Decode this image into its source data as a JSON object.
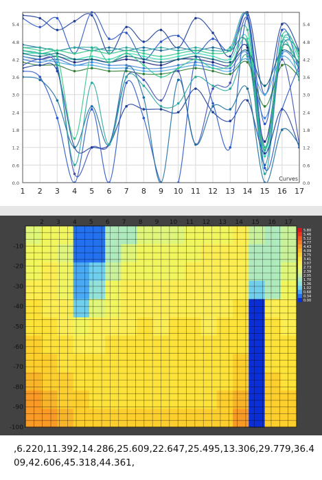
{
  "line_chart": {
    "type": "line",
    "x_ticks": [
      "1",
      "2",
      "3",
      "4",
      "5",
      "6",
      "7",
      "8",
      "9",
      "10",
      "11",
      "12",
      "13",
      "14",
      "15",
      "16",
      "17"
    ],
    "y_ticks": [
      "0.0",
      "0.6",
      "1.2",
      "1.8",
      "2.4",
      "3.0",
      "3.6",
      "4.2",
      "4.8",
      "5.4"
    ],
    "xlim": [
      1,
      17
    ],
    "ylim": [
      0,
      5.8
    ],
    "legend_label": "Curves",
    "grid": true,
    "series_colors": [
      "#1f3f9a",
      "#2a56c6",
      "#1d6f9f",
      "#2ca8a0",
      "#34c58a",
      "#35d4b0",
      "#1a237e",
      "#3b7fd6",
      "#0b5e7a",
      "#4aa3df",
      "#2e7d32",
      "#3f51b5"
    ],
    "series": [
      {
        "values": [
          5.7,
          5.6,
          5.2,
          5.5,
          5.7,
          4.4,
          5.3,
          4.8,
          5.2,
          4.6,
          5.6,
          5.1,
          4.3,
          5.8,
          3.0,
          5.4,
          4.5
        ]
      },
      {
        "values": [
          5.6,
          5.3,
          5.6,
          4.4,
          5.8,
          4.9,
          5.1,
          4.2,
          4.8,
          5.0,
          4.4,
          4.9,
          4.5,
          5.7,
          2.0,
          5.2,
          3.8
        ]
      },
      {
        "values": [
          4.7,
          4.6,
          4.5,
          4.6,
          4.5,
          4.6,
          4.5,
          4.6,
          4.5,
          4.6,
          4.5,
          4.6,
          4.5,
          4.7,
          0.6,
          4.6,
          4.5
        ]
      },
      {
        "values": [
          4.6,
          4.6,
          4.5,
          4.6,
          4.6,
          4.5,
          4.6,
          4.5,
          4.6,
          4.5,
          4.6,
          4.5,
          4.6,
          5.6,
          0.3,
          4.8,
          4.4
        ]
      },
      {
        "values": [
          4.5,
          4.4,
          4.5,
          4.4,
          4.5,
          4.4,
          4.5,
          4.4,
          4.3,
          4.4,
          4.5,
          4.4,
          4.5,
          5.2,
          1.1,
          5.0,
          4.3
        ]
      },
      {
        "values": [
          4.4,
          4.4,
          4.3,
          4.2,
          4.3,
          4.2,
          4.4,
          4.3,
          4.2,
          4.3,
          4.4,
          4.3,
          4.2,
          4.9,
          0.9,
          4.8,
          4.2
        ]
      },
      {
        "values": [
          4.3,
          4.2,
          4.3,
          4.1,
          4.2,
          4.1,
          4.2,
          4.1,
          4.0,
          4.2,
          4.2,
          4.1,
          4.0,
          4.6,
          1.4,
          4.6,
          4.0
        ]
      },
      {
        "values": [
          4.2,
          4.1,
          4.2,
          4.0,
          4.1,
          4.0,
          4.0,
          3.9,
          3.9,
          4.0,
          4.1,
          4.0,
          3.9,
          4.4,
          2.2,
          4.4,
          3.9
        ]
      },
      {
        "values": [
          4.4,
          4.3,
          4.4,
          4.2,
          4.2,
          4.1,
          4.3,
          4.2,
          4.1,
          4.2,
          4.3,
          4.2,
          4.1,
          4.5,
          3.3,
          4.5,
          4.1
        ]
      },
      {
        "values": [
          4.3,
          4.2,
          4.1,
          4.0,
          4.0,
          3.9,
          3.9,
          3.8,
          3.8,
          3.9,
          4.0,
          3.9,
          3.8,
          4.2,
          3.0,
          4.3,
          3.7
        ]
      },
      {
        "values": [
          4.1,
          4.0,
          4.0,
          3.8,
          3.9,
          3.8,
          3.8,
          3.7,
          3.7,
          3.8,
          3.9,
          3.8,
          3.7,
          4.1,
          2.6,
          4.0,
          3.6
        ]
      },
      {
        "values": [
          4.0,
          4.2,
          3.9,
          0.3,
          1.2,
          1.3,
          3.6,
          3.5,
          2.8,
          3.8,
          1.3,
          3.2,
          3.4,
          5.6,
          1.2,
          4.2,
          1.3
        ]
      },
      {
        "values": [
          3.9,
          4.0,
          3.8,
          1.2,
          1.2,
          1.3,
          2.6,
          2.5,
          2.5,
          2.4,
          3.2,
          2.4,
          2.1,
          2.8,
          1.0,
          2.5,
          1.2
        ]
      },
      {
        "values": [
          3.8,
          3.6,
          2.2,
          0.0,
          2.5,
          0.0,
          3.4,
          2.2,
          0.0,
          0.0,
          4.2,
          2.7,
          1.2,
          5.6,
          0.5,
          2.5,
          4.0
        ]
      },
      {
        "values": [
          3.6,
          3.5,
          2.8,
          1.2,
          2.6,
          1.3,
          3.9,
          2.9,
          0.0,
          3.5,
          1.3,
          2.6,
          2.5,
          3.2,
          0.0,
          1.8,
          1.3
        ]
      },
      {
        "values": [
          4.5,
          4.4,
          4.0,
          0.6,
          3.4,
          1.3,
          3.6,
          3.3,
          2.6,
          2.7,
          3.6,
          3.3,
          3.2,
          4.3,
          1.1,
          4.8,
          3.5
        ]
      },
      {
        "values": [
          4.6,
          4.5,
          4.3,
          1.5,
          4.5,
          4.1,
          4.4,
          4.0,
          3.6,
          3.9,
          4.2,
          3.9,
          4.0,
          4.8,
          1.2,
          4.6,
          4.0
        ]
      }
    ]
  },
  "heatmap": {
    "type": "heatmap",
    "x_ticks": [
      "2",
      "3",
      "4",
      "5",
      "6",
      "7",
      "8",
      "9",
      "10",
      "11",
      "12",
      "13",
      "14",
      "15",
      "16",
      "17"
    ],
    "y_ticks": [
      "-10",
      "-20",
      "-30",
      "-40",
      "-50",
      "-60",
      "-70",
      "-80",
      "-90",
      "-100"
    ],
    "xlim": [
      1,
      17.5
    ],
    "ylim": [
      -100,
      0
    ],
    "colorbar": [
      "5.80",
      "5.46",
      "5.12",
      "4.77",
      "4.43",
      "4.09",
      "3.75",
      "3.41",
      "3.07",
      "2.73",
      "2.39",
      "2.05",
      "1.70",
      "1.36",
      "1.02",
      "0.68",
      "0.34",
      "0.00"
    ],
    "colorbar_colors": [
      "#d7191c",
      "#e8331f",
      "#f05a22",
      "#f47b24",
      "#f79a26",
      "#f9b52a",
      "#fccf2e",
      "#fde23a",
      "#fcee52",
      "#f1f55e",
      "#dff67a",
      "#c8f19a",
      "#aeeabb",
      "#93e1d8",
      "#71cfee",
      "#4aa9f2",
      "#2470ee",
      "#0a2fd8"
    ],
    "grid": true,
    "rows": [
      [
        2.5,
        2.6,
        2.6,
        0.3,
        0.5,
        1.7,
        1.8,
        2.4,
        2.4,
        2.5,
        2.6,
        2.6,
        2.7,
        3.0,
        1.9,
        1.7,
        1.9
      ],
      [
        2.6,
        2.7,
        2.5,
        0.3,
        0.4,
        1.8,
        2.3,
        2.6,
        2.6,
        2.6,
        2.9,
        3.0,
        3.0,
        3.1,
        1.8,
        1.6,
        2.1
      ],
      [
        2.9,
        3.0,
        2.6,
        0.6,
        1.0,
        1.9,
        2.8,
        2.9,
        2.8,
        2.9,
        3.1,
        3.1,
        3.1,
        3.2,
        1.7,
        1.6,
        2.5
      ],
      [
        3.1,
        3.1,
        2.8,
        0.7,
        1.4,
        2.7,
        3.0,
        3.0,
        3.0,
        3.1,
        3.1,
        3.1,
        3.2,
        3.2,
        1.0,
        1.6,
        2.8
      ],
      [
        3.3,
        3.2,
        3.1,
        1.0,
        2.5,
        2.8,
        3.1,
        3.2,
        3.1,
        3.2,
        3.2,
        3.2,
        3.2,
        3.3,
        0.0,
        3.2,
        3.0
      ],
      [
        3.4,
        3.3,
        3.2,
        2.9,
        3.0,
        3.2,
        3.2,
        3.3,
        3.2,
        3.3,
        3.3,
        3.2,
        3.3,
        3.3,
        0.0,
        3.3,
        3.2
      ],
      [
        3.6,
        3.5,
        3.4,
        3.2,
        3.2,
        3.3,
        3.3,
        3.3,
        3.3,
        3.4,
        3.4,
        3.3,
        3.3,
        3.4,
        0.0,
        3.4,
        3.3
      ],
      [
        3.8,
        3.6,
        3.4,
        3.4,
        3.3,
        3.4,
        3.3,
        3.4,
        3.4,
        3.4,
        3.4,
        3.3,
        3.4,
        3.6,
        0.0,
        3.5,
        3.4
      ],
      [
        4.0,
        3.8,
        3.6,
        3.5,
        3.4,
        3.5,
        3.4,
        3.4,
        3.4,
        3.5,
        3.4,
        3.4,
        3.5,
        3.7,
        0.0,
        3.6,
        3.5
      ],
      [
        4.3,
        4.0,
        3.8,
        3.6,
        3.5,
        3.5,
        3.5,
        3.5,
        3.5,
        3.5,
        3.5,
        3.5,
        3.6,
        4.0,
        0.0,
        3.7,
        3.6
      ],
      [
        4.6,
        4.3,
        4.1,
        3.9,
        3.7,
        3.6,
        3.6,
        3.6,
        3.6,
        3.6,
        3.7,
        3.7,
        3.9,
        4.6,
        0.0,
        3.9,
        3.8
      ]
    ]
  },
  "text_panel": {
    "content": ",6.220,11.392,14.286,25.609,22.647,25.495,13.306,29.779,36.409,42.606,45.318,44.361,"
  }
}
